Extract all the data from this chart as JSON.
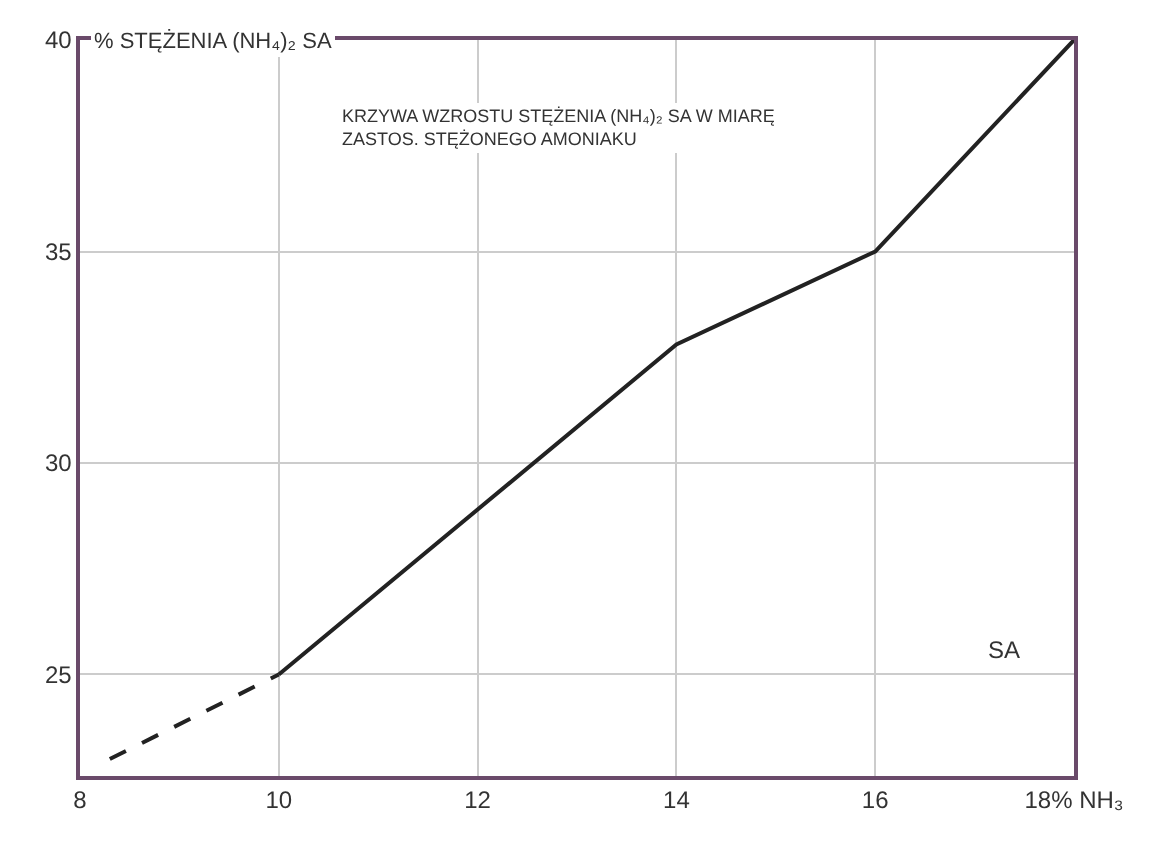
{
  "chart_data": {
    "type": "line",
    "ylabel": "% STĘŻENIA (NH₄)₂ SA",
    "annotations": [
      "KRZYWA WZROSTU STĘŻENIA (NH₄)₂ SA W MIARĘ\nZASTOS. STĘŻONEGO AMONIAKU",
      "SA"
    ],
    "series": [
      {
        "color": "#222222",
        "line_style": "dashed",
        "x": [
          8.3,
          10
        ],
        "values": [
          23,
          25
        ]
      },
      {
        "color": "#222222",
        "line_style": "solid",
        "x": [
          10,
          14,
          16,
          18
        ],
        "values": [
          25,
          32.8,
          35,
          40
        ]
      }
    ],
    "xlim": [
      8,
      18
    ],
    "xticks": [
      8,
      10,
      12,
      14,
      16,
      {
        "value": 18,
        "label": "18% NH₃"
      }
    ],
    "ylim": [
      22.6,
      40
    ],
    "yticks": [
      25,
      30,
      35,
      40
    ],
    "grid": true,
    "marker": "none"
  }
}
